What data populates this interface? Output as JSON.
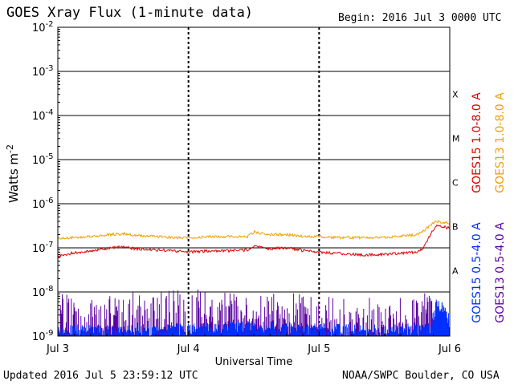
{
  "header": {
    "title": "GOES Xray Flux (1-minute data)",
    "begin": "Begin:  2016 Jul 3 0000 UTC"
  },
  "footer": {
    "updated": "Updated 2016 Jul  5 23:59:12 UTC",
    "credit": "NOAA/SWPC Boulder, CO USA"
  },
  "chart_data": {
    "type": "line",
    "title": "GOES Xray Flux (1-minute data)",
    "xlabel": "Universal Time",
    "ylabel_base": "Watts m",
    "ylabel_exp": "-2",
    "yscale": "log",
    "ylim": [
      1e-09,
      0.01
    ],
    "xlim_days": [
      0,
      3
    ],
    "x_ticks": [
      {
        "day": 0,
        "label": "Jul 3"
      },
      {
        "day": 1,
        "label": "Jul 4"
      },
      {
        "day": 2,
        "label": "Jul 5"
      },
      {
        "day": 3,
        "label": "Jul 6"
      }
    ],
    "y_ticks": [
      {
        "exp": -9,
        "label": "10",
        "sup": "-9"
      },
      {
        "exp": -8,
        "label": "10",
        "sup": "-8"
      },
      {
        "exp": -7,
        "label": "10",
        "sup": "-7"
      },
      {
        "exp": -6,
        "label": "10",
        "sup": "-6"
      },
      {
        "exp": -5,
        "label": "10",
        "sup": "-5"
      },
      {
        "exp": -4,
        "label": "10",
        "sup": "-4"
      },
      {
        "exp": -3,
        "label": "10",
        "sup": "-3"
      },
      {
        "exp": -2,
        "label": "10",
        "sup": "-2"
      }
    ],
    "flare_classes": [
      {
        "label": "X",
        "exp": -4
      },
      {
        "label": "M",
        "exp": -5
      },
      {
        "label": "C",
        "exp": -6
      },
      {
        "label": "B",
        "exp": -7
      },
      {
        "label": "A",
        "exp": -8
      }
    ],
    "grid": "horizontal lines at each decade, dashed vertical lines at day boundaries",
    "legend_position": "right, vertical",
    "colors": {
      "goes15_long": "#dd0000",
      "goes13_long": "#f0a000",
      "goes15_short": "#0030ff",
      "goes13_short": "#5a00a0"
    },
    "series": [
      {
        "name": "GOES15 1.0-8.0 A",
        "color": "#dd0000",
        "x": [
          0,
          0.1,
          0.25,
          0.4,
          0.5,
          0.6,
          0.75,
          0.9,
          1.0,
          1.15,
          1.3,
          1.45,
          1.5,
          1.6,
          1.75,
          1.9,
          2.0,
          2.15,
          2.3,
          2.45,
          2.6,
          2.75,
          2.8,
          2.85,
          2.9,
          2.95,
          3.0
        ],
        "y": [
          6.5e-08,
          7.5e-08,
          8.5e-08,
          1e-07,
          1.05e-07,
          9.5e-08,
          9e-08,
          8.5e-08,
          8e-08,
          8.5e-08,
          8.5e-08,
          9e-08,
          1.1e-07,
          9.5e-08,
          1e-07,
          8.5e-08,
          8e-08,
          7.5e-08,
          7e-08,
          7e-08,
          7.5e-08,
          8e-08,
          1e-07,
          2e-07,
          3.2e-07,
          3e-07,
          2.8e-07
        ]
      },
      {
        "name": "GOES13 1.0-8.0 A",
        "color": "#f0a000",
        "x": [
          0,
          0.1,
          0.25,
          0.4,
          0.5,
          0.6,
          0.75,
          0.9,
          1.0,
          1.15,
          1.3,
          1.45,
          1.5,
          1.6,
          1.75,
          1.9,
          2.0,
          2.15,
          2.3,
          2.45,
          2.6,
          2.75,
          2.8,
          2.85,
          2.9,
          2.95,
          3.0
        ],
        "y": [
          1.6e-07,
          1.7e-07,
          1.8e-07,
          2e-07,
          2.1e-07,
          1.9e-07,
          1.8e-07,
          1.7e-07,
          1.7e-07,
          1.8e-07,
          1.8e-07,
          1.8e-07,
          2.3e-07,
          2e-07,
          2e-07,
          1.8e-07,
          1.8e-07,
          1.7e-07,
          1.7e-07,
          1.7e-07,
          1.8e-07,
          2e-07,
          2.4e-07,
          3.3e-07,
          4e-07,
          3.8e-07,
          3.6e-07
        ]
      },
      {
        "name": "GOES15 0.5-4.0 A",
        "color": "#0030ff",
        "x": [
          0,
          0.5,
          1.0,
          1.5,
          2.0,
          2.5,
          2.85,
          2.9,
          2.95,
          3.0
        ],
        "y": [
          1.2e-09,
          1.2e-09,
          1.3e-09,
          1.5e-09,
          1.3e-09,
          1.2e-09,
          1.5e-09,
          5e-09,
          4e-09,
          2e-09
        ]
      },
      {
        "name": "GOES13 0.5-4.0 A",
        "color": "#5a00a0",
        "x": [
          0,
          0.25,
          0.5,
          0.75,
          1.0,
          1.25,
          1.5,
          1.75,
          2.0,
          2.25,
          2.5,
          2.75,
          3.0
        ],
        "y": [
          2e-09,
          2.5e-09,
          2.5e-09,
          2e-09,
          3e-09,
          2.5e-09,
          2e-09,
          2e-09,
          2e-09,
          2e-09,
          1.5e-09,
          2e-09,
          3e-09
        ],
        "peak_envelope": [
          1e-08,
          1e-08,
          1e-08,
          1e-08,
          1.5e-08,
          1e-08,
          1e-08,
          1e-08,
          8e-09,
          8e-09,
          7e-09,
          1e-08,
          1e-08
        ]
      }
    ]
  }
}
